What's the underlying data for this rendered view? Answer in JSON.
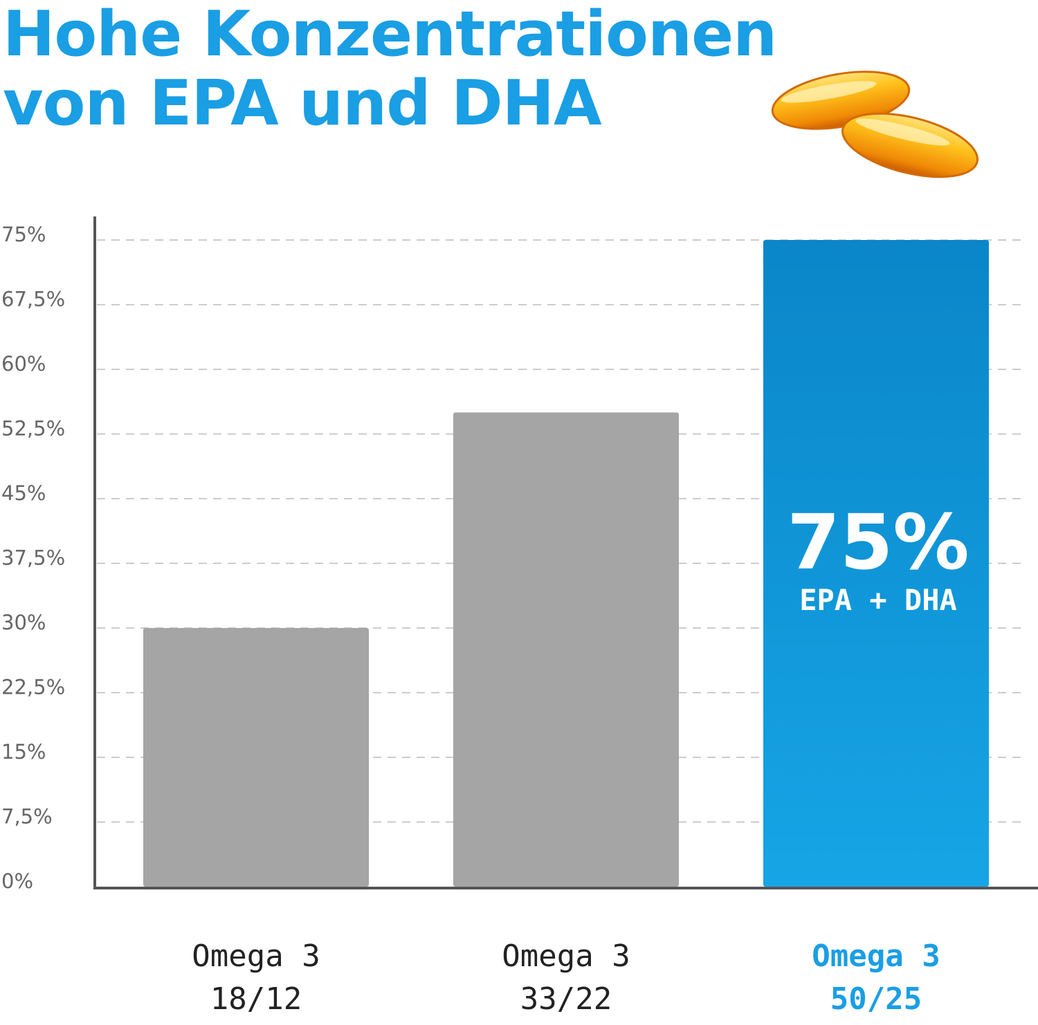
{
  "title": {
    "line1": "Hohe Konzentrationen",
    "line2": "von EPA und DHA"
  },
  "decoration": {
    "icon": "omega-3-capsules-icon"
  },
  "colors": {
    "accent": "#1a9ee4",
    "bar_default": "#a5a5a5",
    "bar_highlight_top": "#0a86c9",
    "bar_highlight_bottom": "#16a5e6",
    "axis": "#555555",
    "grid": "#bbbbbb"
  },
  "chart_data": {
    "type": "bar",
    "categories": [
      [
        "Omega 3",
        "18/12"
      ],
      [
        "Omega 3",
        "33/22"
      ],
      [
        "Omega 3",
        "50/25"
      ]
    ],
    "values": [
      30,
      55,
      75
    ],
    "highlight_index": 2,
    "ylim": [
      0,
      75
    ],
    "yticks": [
      "0%",
      "7,5%",
      "15%",
      "22,5%",
      "30%",
      "37,5%",
      "45%",
      "52,5%",
      "60%",
      "67,5%",
      "75%"
    ],
    "ytick_values": [
      0,
      7.5,
      15,
      22.5,
      30,
      37.5,
      45,
      52.5,
      60,
      67.5,
      75
    ],
    "grid": true,
    "annotation": {
      "value": "75%",
      "label": "EPA + DHA"
    }
  }
}
